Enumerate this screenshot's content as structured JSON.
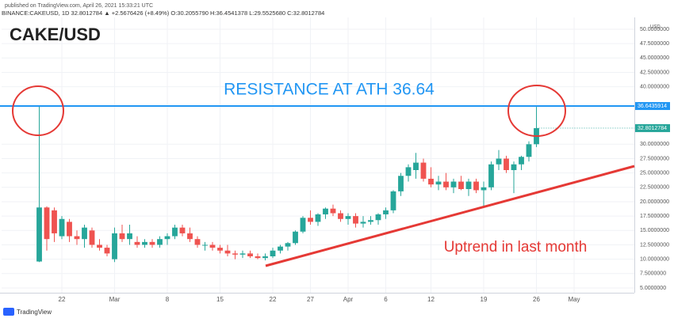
{
  "chart_data": {
    "type": "candlestick",
    "header": {
      "published": "published on TradingView.com, April 26, 2021 15:33:21 UTC",
      "symbol": "BINANCE:CAKEUSD, 1D 32.8012784 ▲ +2.5676426 (+8.49%) O:30.2055790 H:36.4541378 L:29.5525680 C:32.8012784"
    },
    "title": "CAKE/USD",
    "annotations": [
      "RESISTANCE AT ATH 36.64",
      "Uptrend in last month"
    ],
    "footer": "TradingView",
    "y_unit": "USD",
    "categories": [
      null,
      null,
      null,
      "22",
      null,
      null,
      null,
      null,
      null,
      null,
      "Mar",
      null,
      null,
      null,
      null,
      null,
      null,
      "8",
      null,
      null,
      null,
      null,
      null,
      null,
      "15",
      null,
      null,
      null,
      null,
      null,
      null,
      "22",
      null,
      null,
      null,
      null,
      "27",
      null,
      null,
      null,
      null,
      "Apr",
      null,
      null,
      null,
      null,
      "6",
      null,
      null,
      null,
      null,
      null,
      "12",
      null,
      null,
      null,
      null,
      null,
      null,
      "19",
      null,
      null,
      null,
      null,
      null,
      null,
      "26"
    ],
    "xticks": [
      {
        "value": 71,
        "label": "May"
      }
    ],
    "xlim": [
      -5,
      79
    ],
    "open": [
      9.6,
      19,
      18.5,
      14,
      16.5,
      14,
      13.5,
      15,
      12.5,
      12,
      10,
      14.5,
      13.5,
      13,
      12.5,
      13,
      12.5,
      13.5,
      14,
      15.5,
      14.5,
      13.5,
      12.5,
      12.5,
      12,
      11.5,
      11,
      10.8,
      11,
      10.5,
      10.2,
      10.5,
      11.5,
      12.2,
      12.8,
      14.8,
      17.2,
      16.5,
      17.8,
      18.8,
      18,
      17,
      17.5,
      16.2,
      16.5,
      16.8,
      17.8,
      18.5,
      21.8,
      24.5,
      25.5,
      26.8,
      24,
      23,
      23.5,
      22.5,
      23.5,
      22.2,
      23.5,
      22,
      22.5,
      26.5,
      27.5,
      25.5,
      26.5,
      27.8,
      30
    ],
    "high": [
      36.6,
      19.2,
      19,
      17.5,
      17,
      15,
      16,
      15.5,
      13.5,
      12.5,
      15.5,
      16,
      16,
      14,
      13.5,
      13.5,
      14,
      14.5,
      16,
      16,
      15.5,
      14,
      13,
      13,
      12.5,
      12.5,
      11.5,
      11.5,
      11.5,
      11,
      11,
      12,
      12.5,
      13,
      15,
      17.5,
      18.5,
      18,
      19,
      19.5,
      18.5,
      18,
      18,
      17.5,
      17.5,
      18,
      19,
      22,
      25,
      26.5,
      28.5,
      27.5,
      26,
      24.5,
      25,
      24,
      24.5,
      24,
      24,
      23.5,
      27,
      29,
      28,
      27,
      28,
      30.5,
      36.5
    ],
    "low": [
      9.5,
      11.5,
      13,
      13.5,
      13,
      12.5,
      12,
      12,
      11.5,
      10.5,
      9.5,
      13,
      12.5,
      12,
      12,
      12,
      12,
      12.5,
      13.5,
      14,
      13,
      12,
      11.5,
      11.5,
      11,
      10.5,
      10,
      10.2,
      10.2,
      10,
      9.8,
      10.2,
      11,
      11.5,
      12.5,
      14.5,
      16,
      15.8,
      17,
      17.5,
      16.5,
      16,
      15.5,
      15.5,
      16,
      16,
      17,
      18,
      21,
      23.5,
      24,
      23.5,
      22.5,
      22,
      22,
      21.5,
      22,
      21,
      21.5,
      19,
      22,
      25.5,
      25,
      21.5,
      25.5,
      27,
      29.5
    ],
    "close": [
      19,
      13.5,
      14.5,
      17,
      14,
      13.5,
      15.5,
      12.5,
      12,
      11,
      14.5,
      13.5,
      14.5,
      12.5,
      13,
      12.5,
      13.5,
      14,
      15.5,
      14.5,
      13.5,
      12.5,
      12.5,
      12,
      11.5,
      11,
      10.8,
      11,
      10.5,
      10.2,
      10.5,
      11.5,
      12.2,
      12.8,
      14.8,
      17.2,
      16.5,
      17.8,
      18.8,
      18,
      17,
      17.5,
      16.2,
      16.5,
      16.8,
      17.8,
      18.5,
      21.8,
      24.5,
      26,
      26.8,
      24,
      23,
      23.5,
      22.5,
      23.5,
      22.2,
      23.5,
      22,
      22.5,
      26.5,
      27.5,
      25.5,
      26.5,
      27.8,
      30,
      32.8
    ],
    "up_color": "#26a69a",
    "down_color": "#ef5350",
    "resistance": 36.6435914,
    "resistance_color": "#2196f3",
    "last_price": 32.8012784,
    "ylim": [
      4.17,
      52.06
    ],
    "yticks": [
      {
        "value": 5,
        "label": "5.0000000"
      },
      {
        "value": 7.5,
        "label": "7.5000000"
      },
      {
        "value": 10,
        "label": "10.0000000"
      },
      {
        "value": 12.5,
        "label": "12.5000000"
      },
      {
        "value": 15,
        "label": "15.0000000"
      },
      {
        "value": 17.5,
        "label": "17.5000000"
      },
      {
        "value": 20,
        "label": "20.0000000"
      },
      {
        "value": 22.5,
        "label": "22.5000000"
      },
      {
        "value": 25,
        "label": "25.0000000"
      },
      {
        "value": 27.5,
        "label": "27.5000000"
      },
      {
        "value": 30,
        "label": "30.0000000"
      },
      {
        "value": 40,
        "label": "40.0000000"
      },
      {
        "value": 42.5,
        "label": "42.5000000"
      },
      {
        "value": 45,
        "label": "45.0000000"
      },
      {
        "value": 47.5,
        "label": "47.5000000"
      },
      {
        "value": 50,
        "label": "50.0000000"
      }
    ],
    "grid": true
  }
}
